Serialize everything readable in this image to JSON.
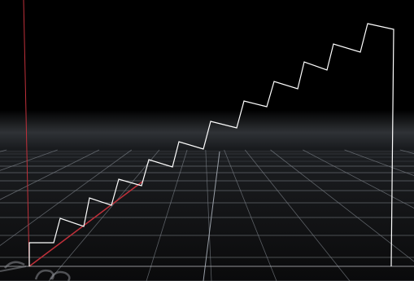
{
  "viewport": {
    "background": "#000000",
    "horizon_glow": "#2f3236",
    "grid_color": "#7b8088",
    "grid_minor_color": "#4a4e55",
    "axis_x_color": "#b0b3b8",
    "axis_y_color": "#c0303a",
    "axis_z_color": "#c0303a"
  },
  "shape": {
    "name": "staircase-profile",
    "stroke_color": "#ffffff",
    "step_count": 13,
    "closed": true
  },
  "gizmo": {
    "icon": "axis-gizmo-icon",
    "color": "#8a8d92"
  }
}
